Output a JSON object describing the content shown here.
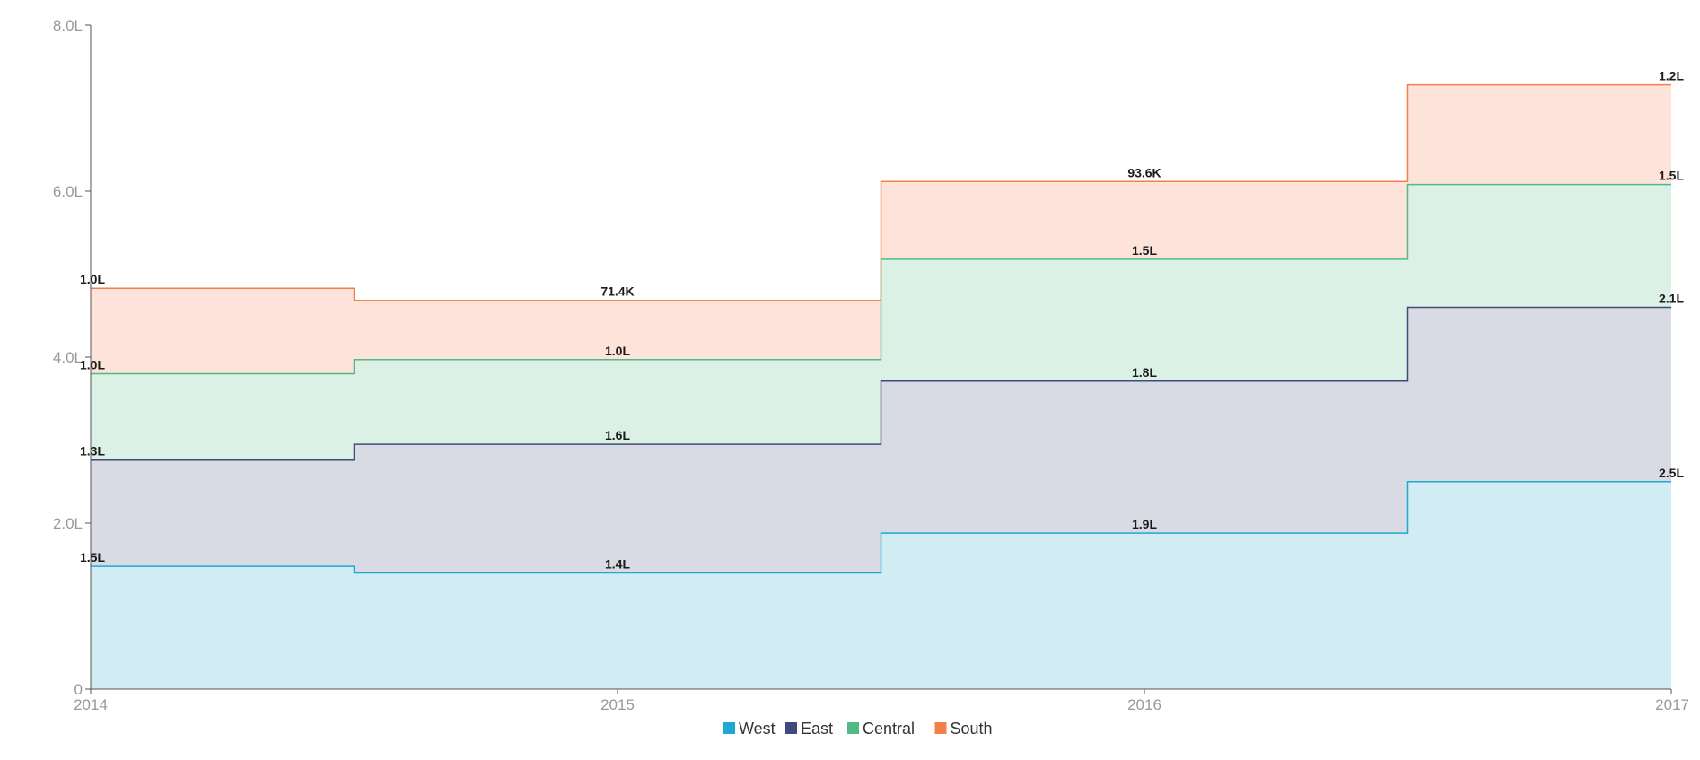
{
  "chart_data": {
    "type": "area",
    "subtype": "stacked-step",
    "title": "",
    "xlabel": "",
    "ylabel": "",
    "categories": [
      "2014",
      "2015",
      "2016",
      "2017"
    ],
    "ylim": [
      0,
      800000
    ],
    "yticks": [
      {
        "value": 0,
        "label": "0"
      },
      {
        "value": 200000,
        "label": "2.0L"
      },
      {
        "value": 400000,
        "label": "4.0L"
      },
      {
        "value": 600000,
        "label": "6.0L"
      },
      {
        "value": 800000,
        "label": "8.0L"
      }
    ],
    "series": [
      {
        "name": "West",
        "color": "#1fa9d1",
        "fill": "#d2ecf4",
        "values": [
          148000,
          140000,
          188000,
          250000
        ],
        "labels": [
          "1.5L",
          "1.4L",
          "1.9L",
          "2.5L"
        ]
      },
      {
        "name": "East",
        "color": "#3f4b7f",
        "fill": "#d8dae4",
        "values": [
          128000,
          155000,
          183000,
          210000
        ],
        "labels": [
          "1.3L",
          "1.6L",
          "1.8L",
          "2.1L"
        ]
      },
      {
        "name": "Central",
        "color": "#54b884",
        "fill": "#dcf1e5",
        "values": [
          104000,
          102000,
          147000,
          148000
        ],
        "labels": [
          "1.0L",
          "1.0L",
          "1.5L",
          "1.5L"
        ]
      },
      {
        "name": "South",
        "color": "#f2804b",
        "fill": "#fde3d9",
        "values": [
          103000,
          71400,
          93600,
          120000
        ],
        "labels": [
          "1.0L",
          "71.4K",
          "93.6K",
          "1.2L"
        ]
      }
    ],
    "legend": "bottom-center",
    "grid": false
  }
}
